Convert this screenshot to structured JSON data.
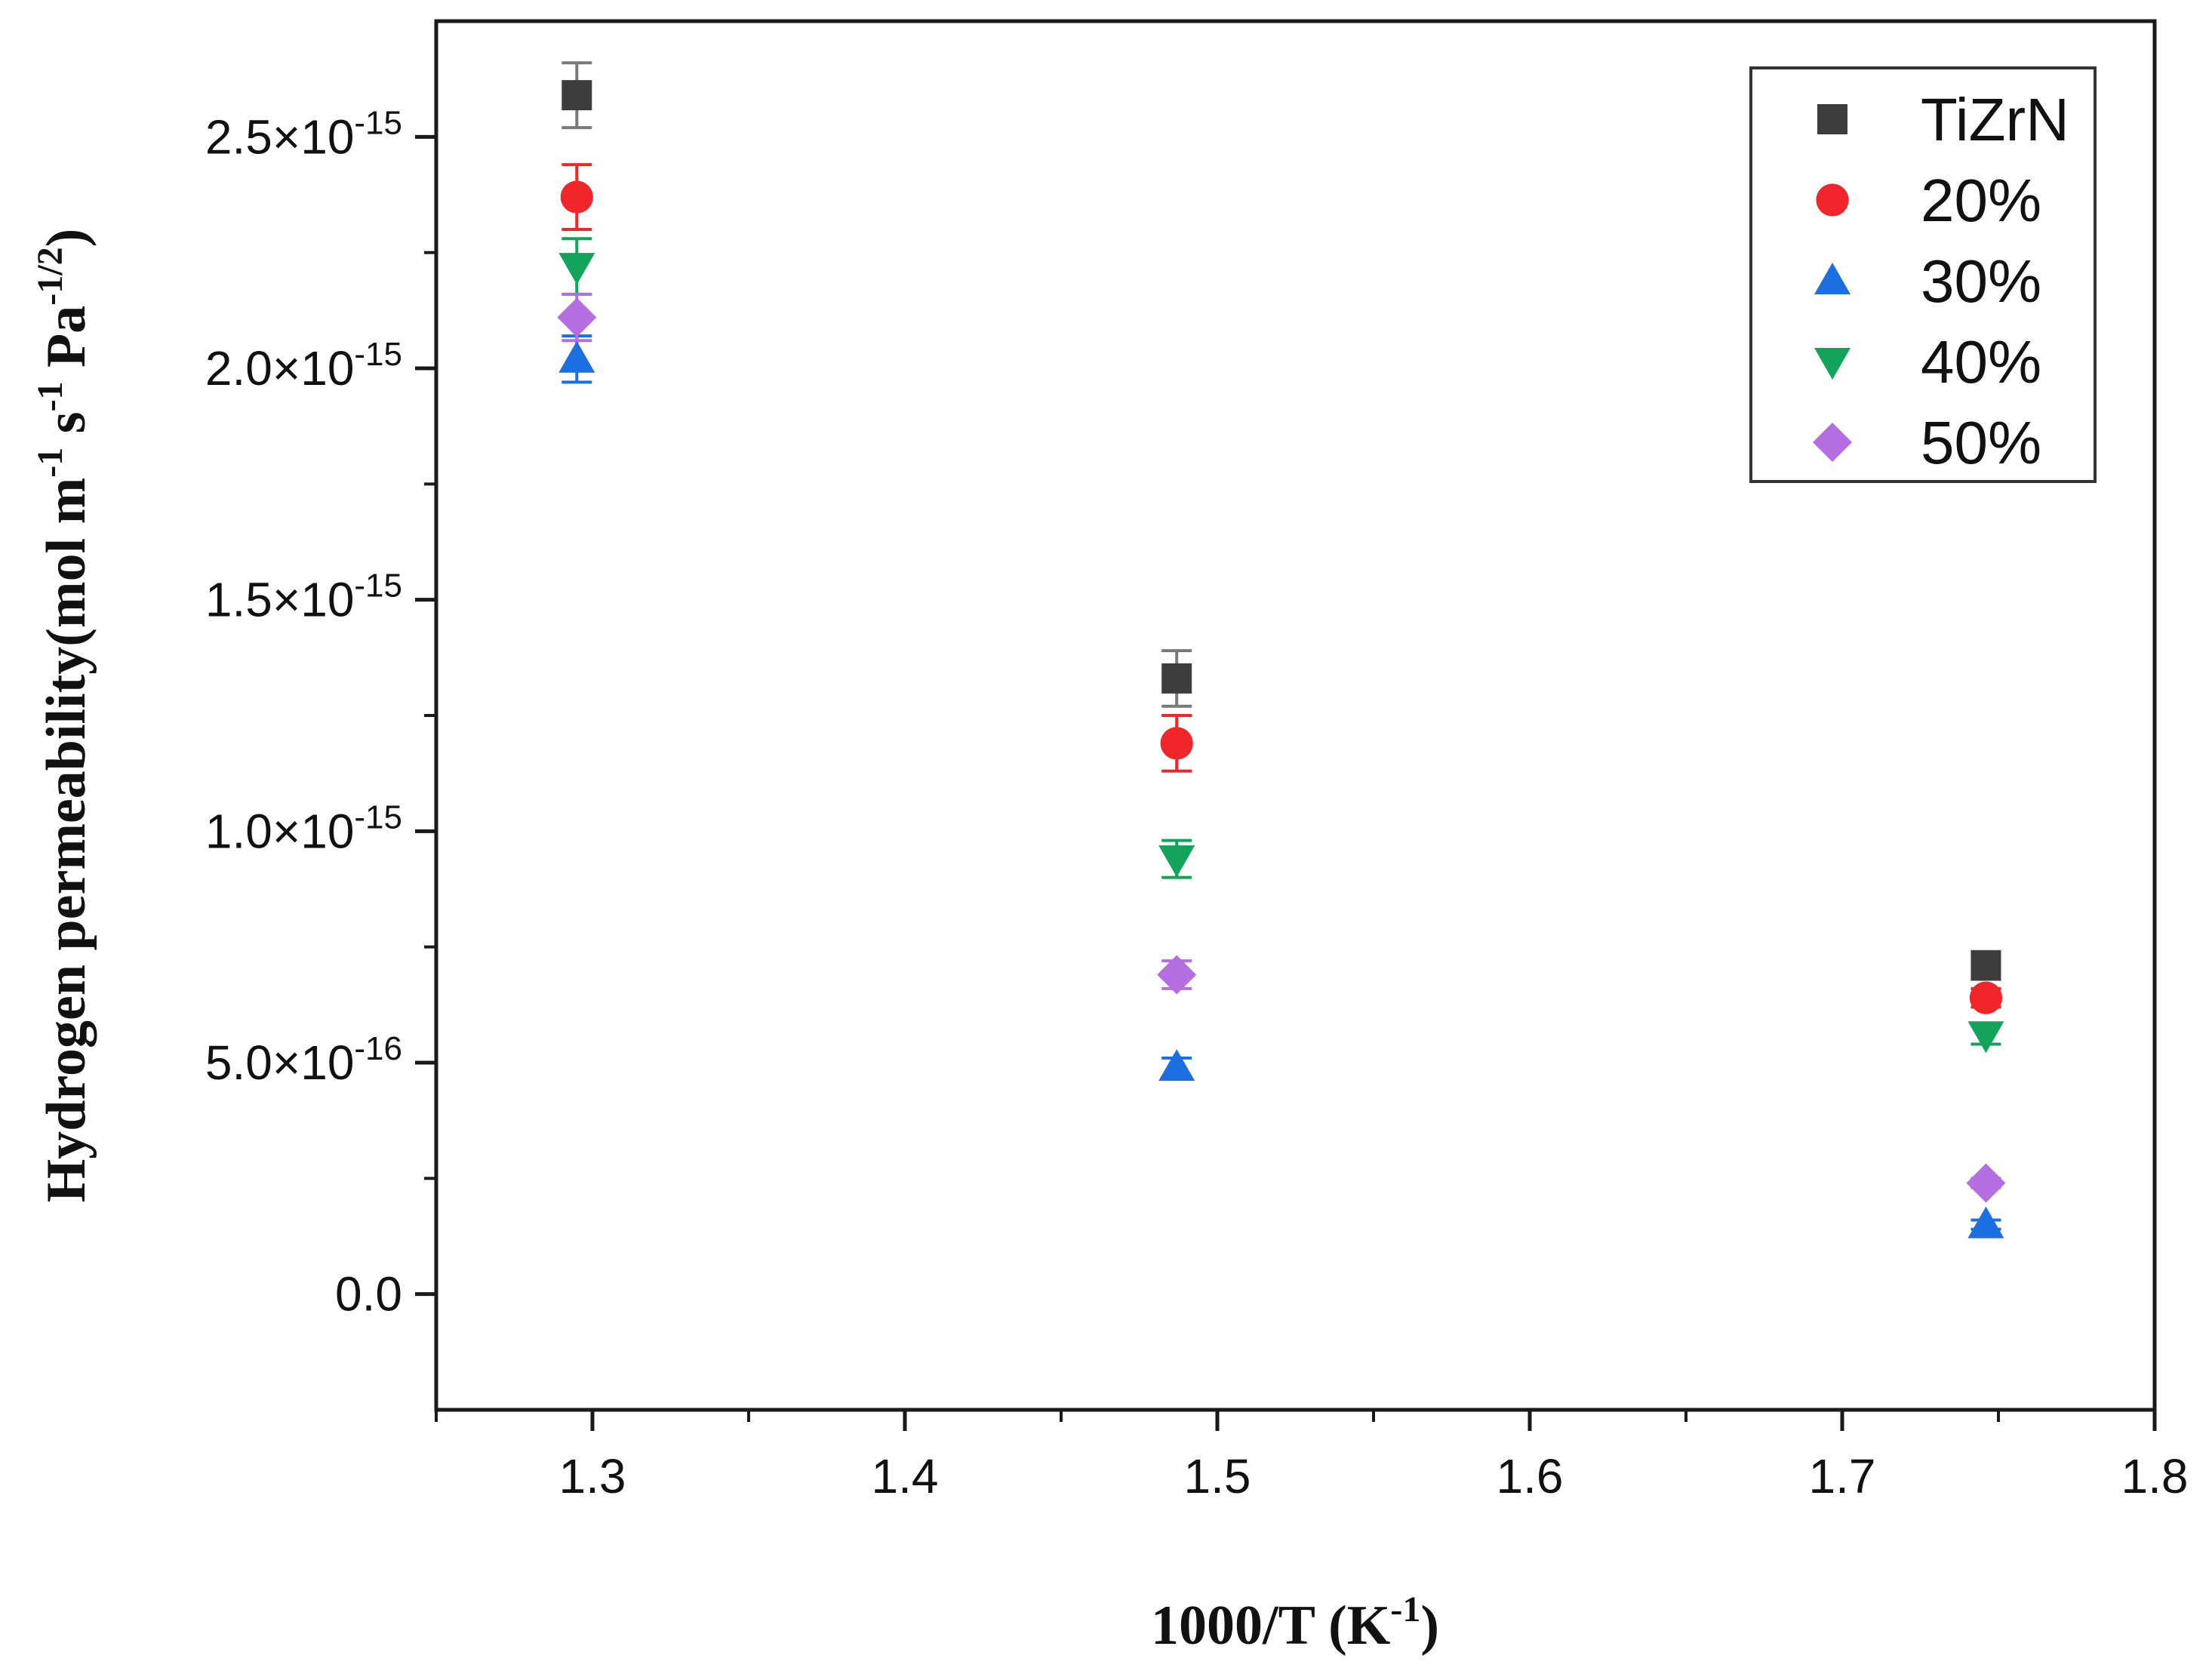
{
  "chart_data": {
    "type": "scatter",
    "title": "",
    "xlabel": "1000/T (K",
    "xlabel_sup": "-1",
    "xlabel_end": ")",
    "ylabel_parts": [
      {
        "text": "Hydrogen permeability(mol m",
        "sup": false
      },
      {
        "text": "-1",
        "sup": true
      },
      {
        "text": " s",
        "sup": false
      },
      {
        "text": "-1",
        "sup": true
      },
      {
        "text": " Pa",
        "sup": false
      },
      {
        "text": "-1/2",
        "sup": true
      },
      {
        "text": ")",
        "sup": false
      }
    ],
    "xlim": [
      1.25,
      1.8
    ],
    "ylim": [
      -2.5e-16,
      2.75e-15
    ],
    "x_ticks": [
      {
        "value": 1.3,
        "label": "1.3"
      },
      {
        "value": 1.4,
        "label": "1.4"
      },
      {
        "value": 1.5,
        "label": "1.5"
      },
      {
        "value": 1.6,
        "label": "1.6"
      },
      {
        "value": 1.7,
        "label": "1.7"
      },
      {
        "value": 1.8,
        "label": "1.8"
      }
    ],
    "y_ticks": [
      {
        "value": 0,
        "label": "0.0",
        "exp": ""
      },
      {
        "value": 5e-16,
        "label": "5.0×10",
        "exp": "-16"
      },
      {
        "value": 1e-15,
        "label": "1.0×10",
        "exp": "-15"
      },
      {
        "value": 1.5e-15,
        "label": "1.5×10",
        "exp": "-15"
      },
      {
        "value": 2e-15,
        "label": "2.0×10",
        "exp": "-15"
      },
      {
        "value": 2.5e-15,
        "label": "2.5×10",
        "exp": "-15"
      }
    ],
    "legend_position": "top-right",
    "series": [
      {
        "name": "TiZrN",
        "marker": "square",
        "color": "#3d3d3d",
        "error_color": "#7a7a7a",
        "points": [
          {
            "x": 1.295,
            "y": 2.59e-15,
            "err": 7e-17
          },
          {
            "x": 1.487,
            "y": 1.33e-15,
            "err": 6e-17
          },
          {
            "x": 1.746,
            "y": 7.1e-16,
            "err": 3e-17
          }
        ]
      },
      {
        "name": "20%",
        "marker": "circle",
        "color": "#f0262b",
        "error_color": "#f0262b",
        "points": [
          {
            "x": 1.295,
            "y": 2.37e-15,
            "err": 7e-17
          },
          {
            "x": 1.487,
            "y": 1.19e-15,
            "err": 6e-17
          },
          {
            "x": 1.746,
            "y": 6.4e-16,
            "err": 2e-17
          }
        ]
      },
      {
        "name": "30%",
        "marker": "triangle-up",
        "color": "#1c6fe0",
        "error_color": "#1c6fe0",
        "points": [
          {
            "x": 1.295,
            "y": 2.02e-15,
            "err": 5e-17
          },
          {
            "x": 1.487,
            "y": 4.9e-16,
            "err": 2e-17
          },
          {
            "x": 1.746,
            "y": 1.5e-16,
            "err": 1e-17
          }
        ]
      },
      {
        "name": "40%",
        "marker": "triangle-down",
        "color": "#13a35a",
        "error_color": "#13a35a",
        "points": [
          {
            "x": 1.295,
            "y": 2.22e-15,
            "err": 6e-17
          },
          {
            "x": 1.487,
            "y": 9.4e-16,
            "err": 4e-17
          },
          {
            "x": 1.746,
            "y": 5.6e-16,
            "err": 2e-17
          }
        ]
      },
      {
        "name": "50%",
        "marker": "diamond",
        "color": "#b46ee0",
        "error_color": "#b46ee0",
        "points": [
          {
            "x": 1.295,
            "y": 2.11e-15,
            "err": 5e-17
          },
          {
            "x": 1.487,
            "y": 6.9e-16,
            "err": 3e-17
          },
          {
            "x": 1.746,
            "y": 2.4e-16,
            "err": 1e-17
          }
        ]
      }
    ]
  }
}
